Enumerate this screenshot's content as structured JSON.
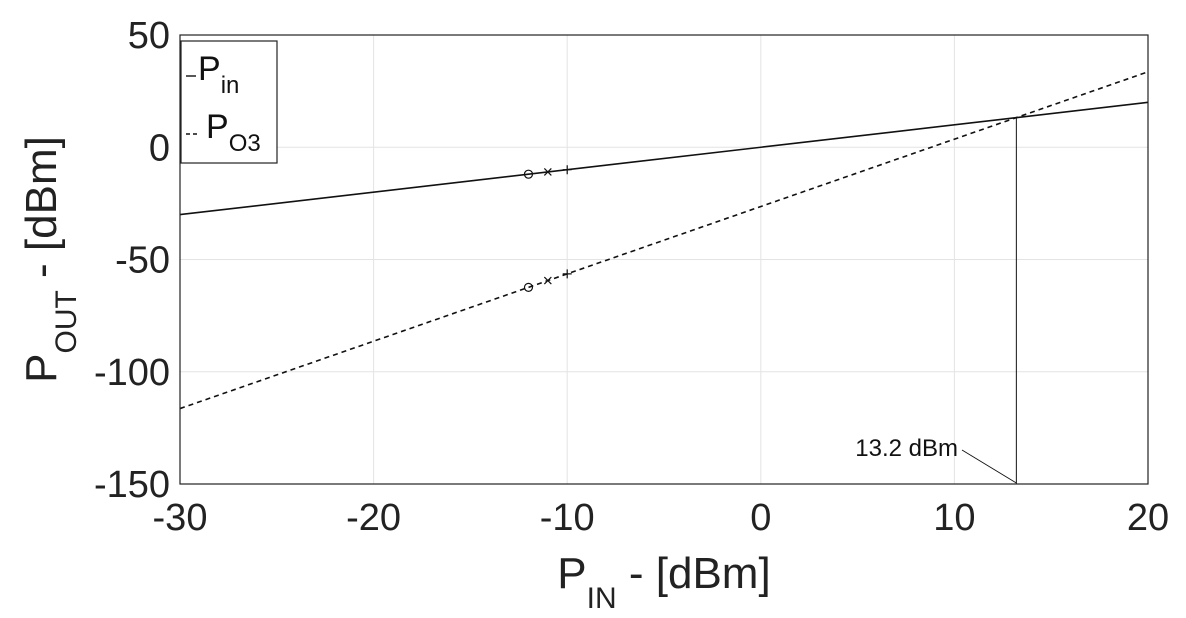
{
  "chart_data": {
    "type": "line",
    "xlabel": {
      "main": "P",
      "sub": "IN",
      "rest": " - [dBm]"
    },
    "ylabel": {
      "main": "P",
      "sub": "OUT",
      "rest": " - [dBm]"
    },
    "xlim": [
      -30,
      20
    ],
    "ylim": [
      -150,
      50
    ],
    "xticks": [
      -30,
      -20,
      -10,
      0,
      10,
      20
    ],
    "yticks": [
      -150,
      -100,
      -50,
      0,
      50
    ],
    "grid": true,
    "legend_position": "top-left",
    "series": [
      {
        "name_main": "P",
        "name_sub": "in",
        "style": "solid",
        "x": [
          -30,
          20
        ],
        "y": [
          -30,
          20
        ]
      },
      {
        "name_main": "P",
        "name_sub": "O3",
        "style": "dashed",
        "x": [
          -30,
          20
        ],
        "y": [
          -116.4,
          33.6
        ]
      }
    ],
    "markers": [
      {
        "x": -12,
        "y": -12,
        "symbol": "circle"
      },
      {
        "x": -11,
        "y": -11,
        "symbol": "x"
      },
      {
        "x": -10,
        "y": -10,
        "symbol": "plus"
      },
      {
        "x": -12,
        "y": -62.4,
        "symbol": "circle"
      },
      {
        "x": -11,
        "y": -59.4,
        "symbol": "x"
      },
      {
        "x": -10,
        "y": -56.4,
        "symbol": "plus"
      }
    ],
    "intercept": {
      "x": 13.2,
      "y": 13.2
    },
    "annotation": {
      "text": "13.2 dBm"
    }
  }
}
